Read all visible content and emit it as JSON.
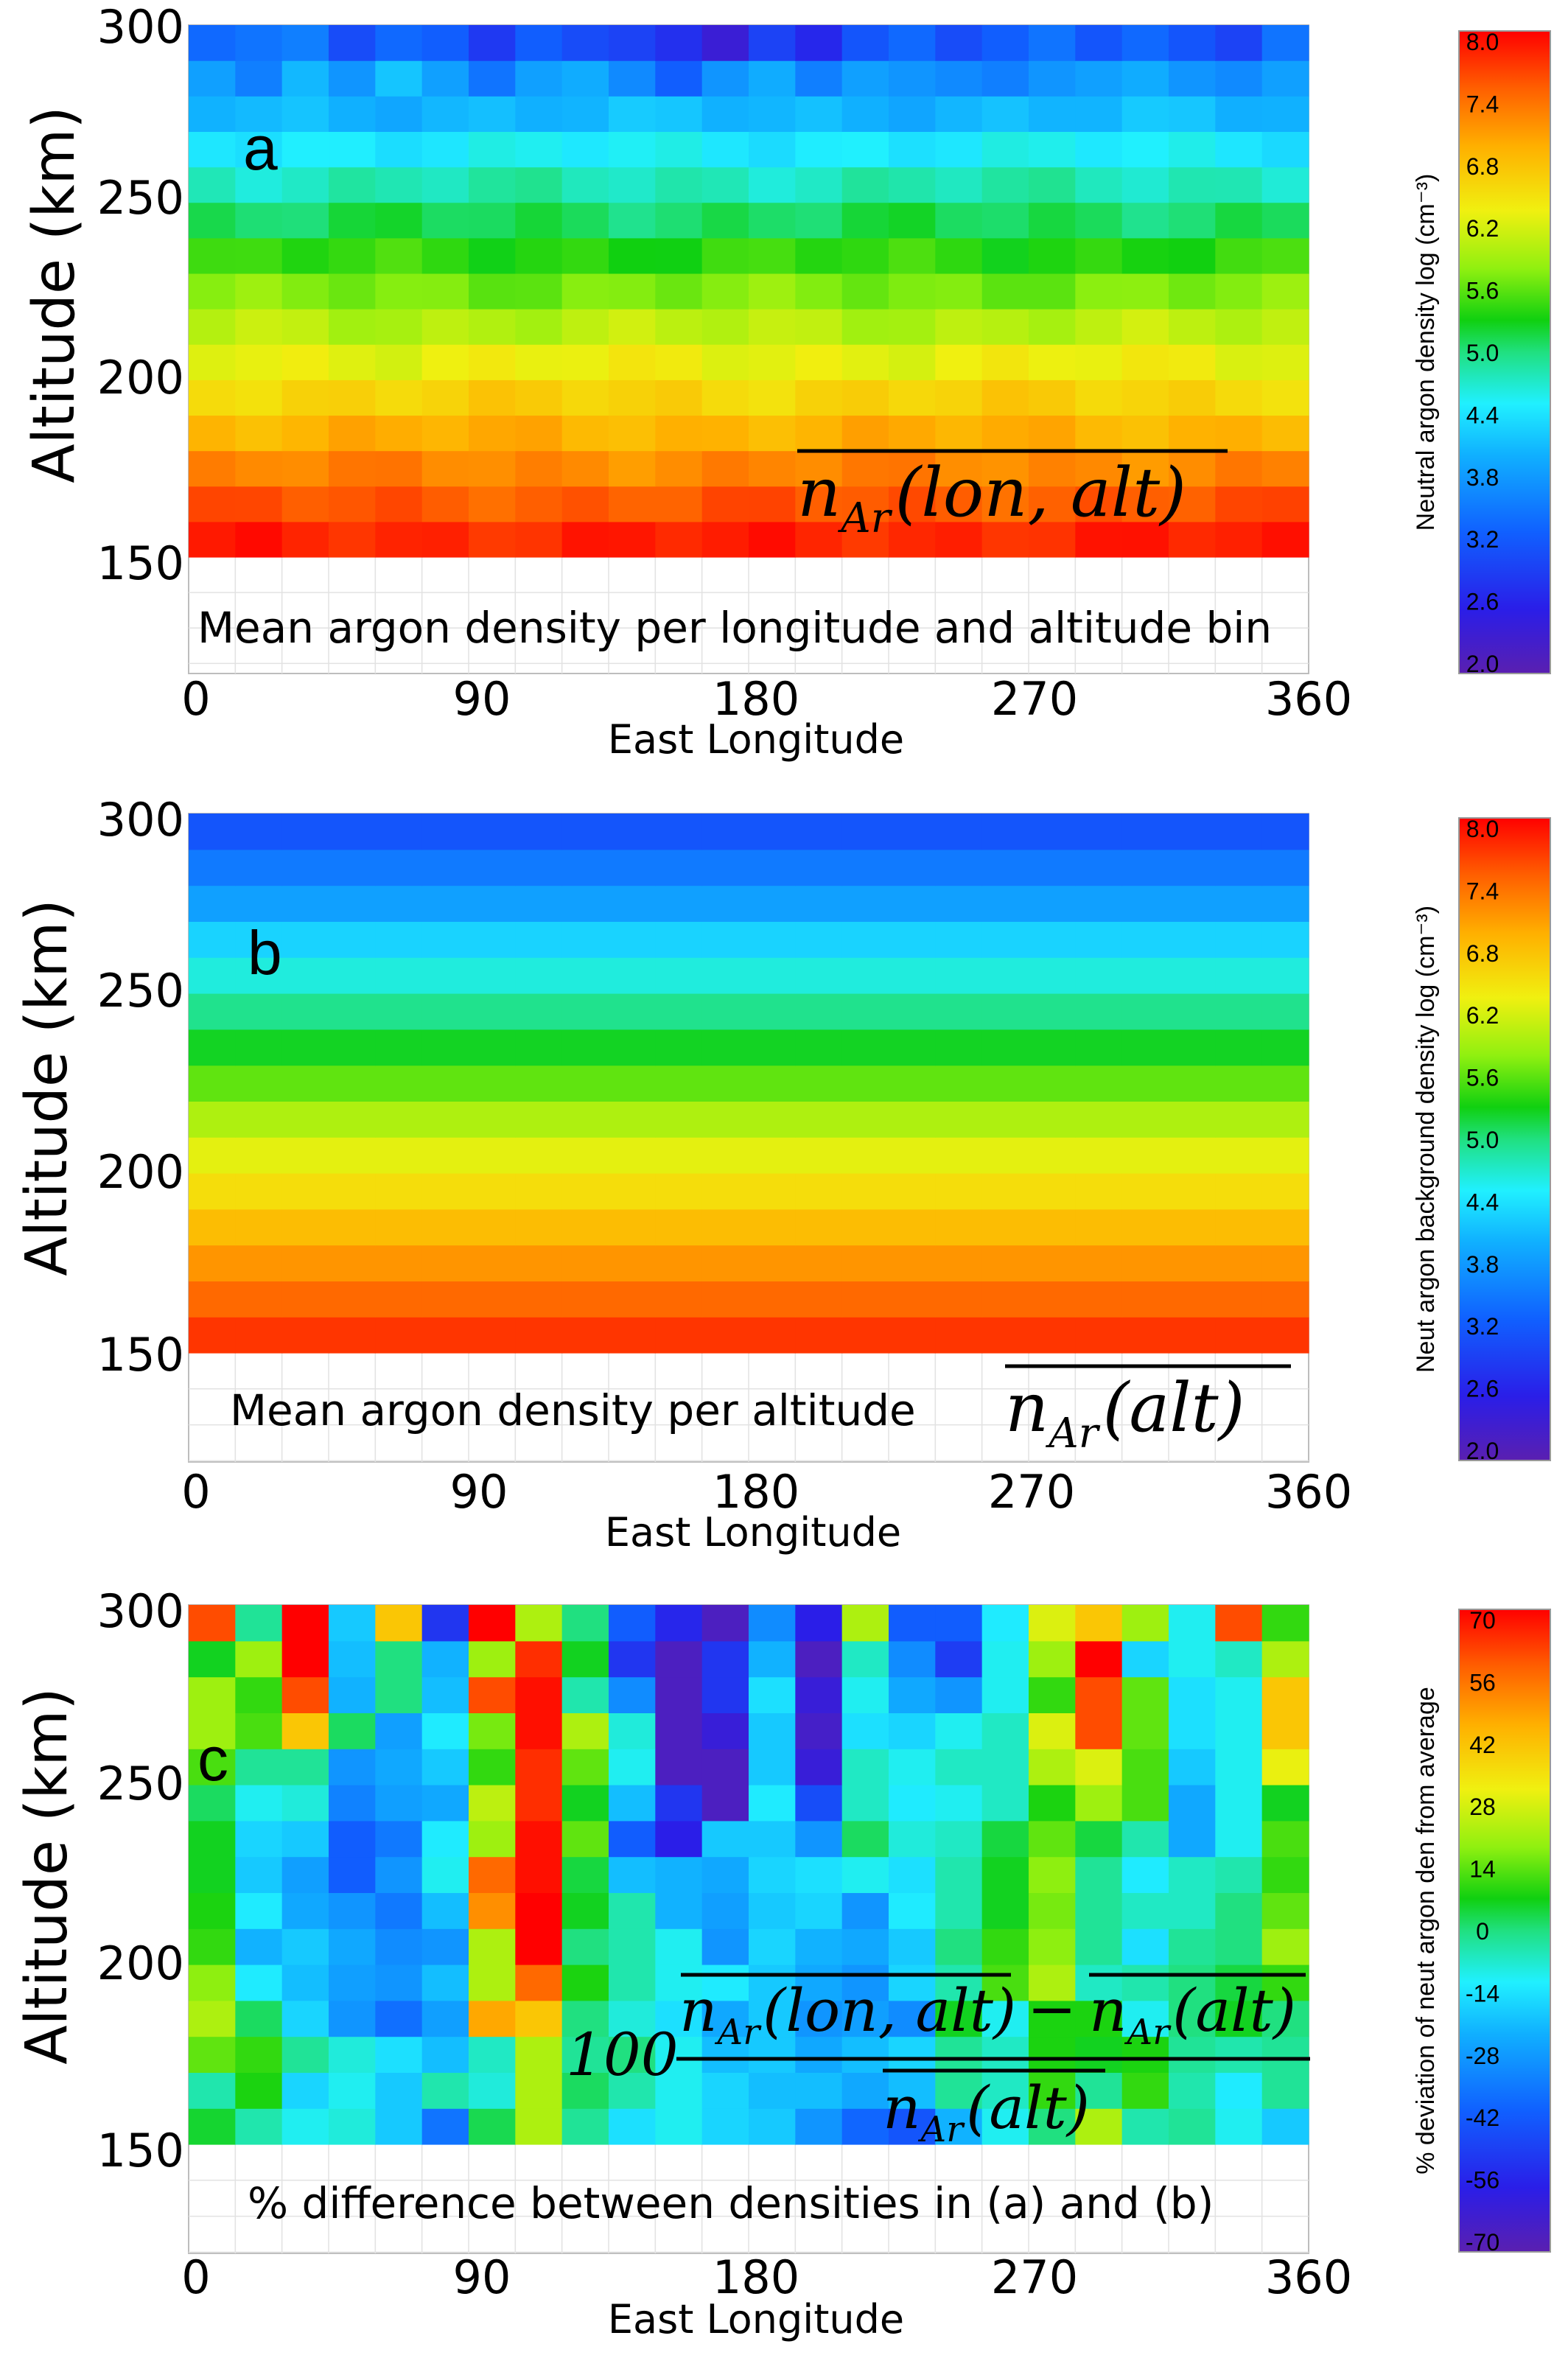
{
  "chart_data": [
    {
      "type": "heatmap",
      "panel_label": "a",
      "xlabel": "East Longitude",
      "ylabel": "Altitude (km)",
      "xlim": [
        0,
        360
      ],
      "ylim": [
        120,
        300
      ],
      "x_ticks": [
        "0",
        "90",
        "180",
        "270",
        "360"
      ],
      "y_ticks": [
        "150",
        "200",
        "250",
        "300"
      ],
      "annotation": "Mean argon density per longitude and altitude bin",
      "formula": {
        "main": "n",
        "sub": "Ar",
        "args": "(lon, alt)"
      },
      "colorbar": {
        "label": "Neutral argon density log (cm⁻³)",
        "ticks": [
          "8.0",
          "7.4",
          "6.8",
          "6.2",
          "5.6",
          "5.0",
          "4.4",
          "3.8",
          "3.2",
          "2.6",
          "2.0"
        ],
        "range": [
          2.0,
          8.0
        ]
      },
      "lon_bins": [
        0,
        15,
        30,
        45,
        60,
        75,
        90,
        105,
        120,
        135,
        150,
        165,
        180,
        195,
        210,
        225,
        240,
        255,
        270,
        285,
        300,
        315,
        330,
        345
      ],
      "alt_bins": [
        150,
        160,
        170,
        180,
        190,
        200,
        210,
        220,
        230,
        240,
        250,
        260,
        270,
        280,
        290
      ],
      "rows_base": [
        7.8,
        7.5,
        7.2,
        6.9,
        6.6,
        6.3,
        6.0,
        5.7,
        5.4,
        5.1,
        4.8,
        4.5,
        4.1,
        3.7,
        3.4
      ],
      "top_rows": {
        "280": [
          3.9,
          3.6,
          4.1,
          3.8,
          4.2,
          3.9,
          3.5,
          3.9,
          4.0,
          3.7,
          3.3,
          3.8,
          4.0,
          3.6,
          3.9,
          3.8,
          3.7,
          3.6,
          3.8,
          3.9,
          4.0,
          3.8,
          3.7,
          3.9
        ],
        "290": [
          3.4,
          3.5,
          3.6,
          3.1,
          3.4,
          3.3,
          2.9,
          3.3,
          3.1,
          3.0,
          2.8,
          2.4,
          3.0,
          2.7,
          3.2,
          3.4,
          3.1,
          3.3,
          3.5,
          3.2,
          3.4,
          3.2,
          3.0,
          3.5
        ]
      }
    },
    {
      "type": "heatmap",
      "panel_label": "b",
      "xlabel": "East Longitude",
      "ylabel": "Altitude (km)",
      "xlim": [
        0,
        360
      ],
      "ylim": [
        120,
        300
      ],
      "x_ticks": [
        "0",
        "90",
        "180",
        "270",
        "360"
      ],
      "y_ticks": [
        "150",
        "200",
        "250",
        "300"
      ],
      "annotation": "Mean argon density per altitude",
      "formula": {
        "main": "n",
        "sub": "Ar",
        "args": "(alt)"
      },
      "colorbar": {
        "label": "Neut argon background density log (cm⁻³)",
        "ticks": [
          "8.0",
          "7.4",
          "6.8",
          "6.2",
          "5.6",
          "5.0",
          "4.4",
          "3.8",
          "3.2",
          "2.6",
          "2.0"
        ],
        "range": [
          2.0,
          8.0
        ]
      },
      "alt_bins": [
        150,
        160,
        170,
        180,
        190,
        200,
        210,
        220,
        230,
        240,
        250,
        260,
        270,
        280,
        290
      ],
      "values": [
        7.7,
        7.4,
        7.1,
        6.8,
        6.5,
        6.25,
        5.95,
        5.6,
        5.25,
        4.95,
        4.65,
        4.3,
        3.9,
        3.55,
        3.2
      ]
    },
    {
      "type": "heatmap",
      "panel_label": "c",
      "xlabel": "East Longitude",
      "ylabel": "Altitude (km)",
      "xlim": [
        0,
        360
      ],
      "ylim": [
        120,
        300
      ],
      "x_ticks": [
        "0",
        "90",
        "180",
        "270",
        "360"
      ],
      "y_ticks": [
        "150",
        "200",
        "250",
        "300"
      ],
      "annotation": "% difference between densities in (a) and (b)",
      "formula": {
        "coef": "100",
        "num_a": {
          "main": "n",
          "sub": "Ar",
          "args": "(lon, alt)"
        },
        "minus": "−",
        "num_b": {
          "main": "n",
          "sub": "Ar",
          "args": "(alt)"
        },
        "den": {
          "main": "n",
          "sub": "Ar",
          "args": "(alt)"
        }
      },
      "colorbar": {
        "label": "% deviation of neut argon den from average",
        "ticks": [
          "70",
          "56",
          "42",
          "28",
          "14",
          "0",
          "-14",
          "-28",
          "-42",
          "-56",
          "-70"
        ],
        "range": [
          -70,
          70
        ]
      },
      "lon_bins": [
        0,
        15,
        30,
        45,
        60,
        75,
        90,
        105,
        120,
        135,
        150,
        165,
        180,
        195,
        210,
        225,
        240,
        255,
        270,
        285,
        300,
        315,
        330,
        345
      ],
      "alt_bins": [
        150,
        160,
        170,
        180,
        190,
        200,
        210,
        220,
        230,
        240,
        250,
        260,
        270,
        280,
        290
      ],
      "values": [
        [
          5,
          -4,
          -10,
          -8,
          -18,
          -35,
          3,
          22,
          -2,
          -14,
          -10,
          -16,
          -18,
          -28,
          -38,
          -42,
          -22,
          -10,
          0,
          22,
          -4,
          -2,
          -10,
          -18
        ],
        [
          -4,
          8,
          -16,
          -10,
          -18,
          -4,
          -8,
          22,
          2,
          -4,
          -10,
          -16,
          -20,
          -20,
          -24,
          -20,
          -2,
          -6,
          10,
          -2,
          10,
          -4,
          -12,
          -2
        ],
        [
          14,
          10,
          -2,
          -8,
          -14,
          -20,
          -6,
          22,
          -2,
          0,
          -10,
          -20,
          -18,
          -24,
          -20,
          -16,
          -2,
          -6,
          8,
          6,
          8,
          -2,
          -4,
          -2
        ],
        [
          22,
          2,
          -16,
          -28,
          -36,
          -26,
          46,
          40,
          0,
          -8,
          -14,
          -24,
          -18,
          -28,
          -26,
          -30,
          6,
          -10,
          8,
          8,
          -10,
          0,
          6,
          0
        ],
        [
          18,
          -12,
          -20,
          -26,
          -28,
          -20,
          22,
          56,
          8,
          -4,
          -10,
          -12,
          -18,
          -24,
          -28,
          -16,
          -4,
          12,
          22,
          -6,
          -4,
          0,
          4,
          10
        ],
        [
          10,
          -22,
          -18,
          -24,
          -30,
          -28,
          22,
          70,
          0,
          -4,
          -10,
          -28,
          -16,
          -22,
          -24,
          -18,
          0,
          10,
          18,
          -2,
          -14,
          -2,
          0,
          20
        ],
        [
          8,
          -12,
          -24,
          -28,
          -34,
          -20,
          50,
          70,
          6,
          -4,
          -22,
          -26,
          -18,
          -16,
          -28,
          -12,
          -4,
          6,
          16,
          -2,
          -6,
          -6,
          0,
          14
        ],
        [
          6,
          -18,
          -26,
          -40,
          -28,
          -10,
          56,
          68,
          4,
          -20,
          -22,
          -24,
          -16,
          -14,
          -10,
          -14,
          -4,
          6,
          18,
          -2,
          -12,
          -6,
          -4,
          10
        ],
        [
          6,
          -16,
          -18,
          -40,
          -34,
          -12,
          20,
          68,
          14,
          -40,
          -56,
          -18,
          -18,
          -28,
          2,
          -8,
          -6,
          4,
          14,
          4,
          -4,
          -24,
          -10,
          12
        ],
        [
          2,
          -10,
          -8,
          -32,
          -26,
          -24,
          24,
          64,
          6,
          -20,
          -50,
          -66,
          -12,
          -44,
          -6,
          -12,
          -10,
          -6,
          8,
          20,
          12,
          -24,
          -10,
          6
        ],
        [
          12,
          -2,
          -2,
          -28,
          -24,
          -18,
          10,
          64,
          14,
          -10,
          -66,
          -66,
          -18,
          -60,
          -6,
          -10,
          -6,
          -6,
          22,
          28,
          12,
          -18,
          -10,
          30
        ],
        [
          20,
          12,
          40,
          2,
          -26,
          -12,
          16,
          68,
          22,
          -8,
          -66,
          -60,
          -18,
          -64,
          -14,
          -16,
          -10,
          -6,
          28,
          60,
          14,
          -14,
          -10,
          40
        ],
        [
          20,
          10,
          60,
          -22,
          0,
          -20,
          60,
          68,
          -4,
          -30,
          -66,
          -50,
          -14,
          -60,
          -10,
          -24,
          -28,
          -10,
          10,
          60,
          14,
          -14,
          -10,
          40
        ],
        [
          6,
          20,
          70,
          -20,
          0,
          -22,
          20,
          64,
          6,
          -50,
          -66,
          -50,
          -22,
          -66,
          -6,
          -30,
          -48,
          -10,
          20,
          70,
          -16,
          -10,
          -6,
          22
        ],
        [
          60,
          -2,
          70,
          -18,
          40,
          -50,
          70,
          22,
          0,
          -40,
          -54,
          -66,
          -30,
          -56,
          22,
          -40,
          -40,
          -12,
          28,
          40,
          20,
          -10,
          60,
          10
        ]
      ]
    }
  ]
}
